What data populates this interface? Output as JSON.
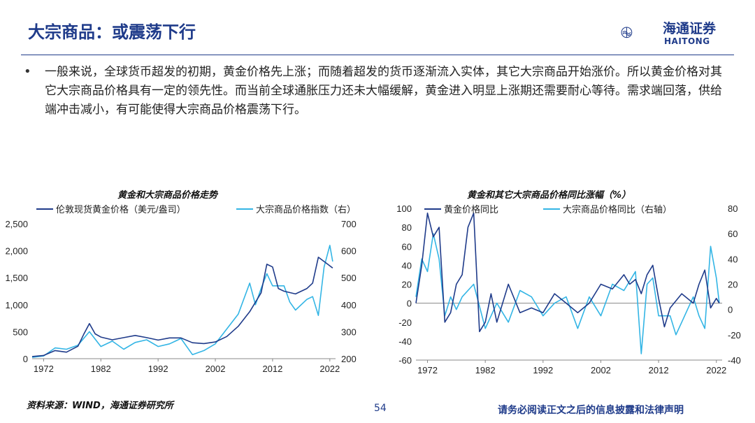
{
  "slide": {
    "title": "大宗商品：或震荡下行",
    "logo_name": "海通证券",
    "logo_sub": "HAITONG",
    "bullet": "•",
    "body": "一般来说，全球货币超发的初期，黄金价格先上涨；而随着超发的货币逐渐流入实体，其它大宗商品开始涨价。所以黄金价格对其它大宗商品价格具有一定的领先性。而当前全球通胀压力还未大幅缓解，黄金进入明显上涨期还需要耐心等待。需求端回落，供给端冲击减小，有可能使得大宗商品价格震荡下行。",
    "source": "资料来源：WIND，海通证券研究所",
    "page_number": "54",
    "disclaimer": "请务必阅读正文之后的信息披露和法律声明"
  },
  "colors": {
    "dark": "#1f3b8a",
    "light": "#33b5e5"
  },
  "chart_data": [
    {
      "type": "line",
      "title": "黄金和大宗商品价格走势",
      "x_ticks": [
        "1972",
        "1982",
        "1992",
        "2002",
        "2012",
        "2022"
      ],
      "xlim": [
        1970,
        2023
      ],
      "y_left": {
        "lim": [
          0,
          2500
        ],
        "ticks": [
          "0",
          "500",
          "1,000",
          "1,500",
          "2,000",
          "2,500"
        ]
      },
      "y_right": {
        "lim": [
          200,
          700
        ],
        "ticks": [
          "200",
          "300",
          "400",
          "500",
          "600",
          "700"
        ]
      },
      "series": [
        {
          "name": "伦敦现货黄金价格（美元/盎司）",
          "axis": "left",
          "color": "#1f3b8a",
          "x": [
            1970,
            1972,
            1974,
            1976,
            1978,
            1979,
            1980,
            1981,
            1982,
            1984,
            1986,
            1988,
            1990,
            1992,
            1994,
            1996,
            1998,
            2000,
            2002,
            2004,
            2006,
            2008,
            2010,
            2011,
            2012,
            2013,
            2014,
            2016,
            2018,
            2019,
            2020,
            2021,
            2022.5
          ],
          "y": [
            40,
            60,
            150,
            120,
            230,
            450,
            650,
            460,
            400,
            350,
            390,
            430,
            390,
            345,
            385,
            385,
            295,
            280,
            310,
            410,
            600,
            870,
            1220,
            1750,
            1700,
            1300,
            1250,
            1200,
            1300,
            1400,
            1880,
            1800,
            1680
          ]
        },
        {
          "name": "大宗商品价格指数（右）",
          "axis": "right",
          "color": "#33b5e5",
          "x": [
            1970,
            1972,
            1974,
            1976,
            1978,
            1980,
            1982,
            1984,
            1986,
            1988,
            1990,
            1992,
            1994,
            1996,
            1998,
            2000,
            2002,
            2004,
            2006,
            2008,
            2009,
            2010,
            2011,
            2012,
            2014,
            2015,
            2016,
            2018,
            2019,
            2020,
            2021,
            2022,
            2022.5
          ],
          "y": [
            205,
            210,
            240,
            235,
            250,
            300,
            245,
            265,
            235,
            260,
            270,
            245,
            255,
            275,
            215,
            230,
            255,
            310,
            365,
            480,
            400,
            460,
            515,
            470,
            470,
            410,
            380,
            420,
            430,
            360,
            540,
            620,
            560
          ]
        }
      ]
    },
    {
      "type": "line",
      "title": "黄金和其它大宗商品价格同比涨幅（%）",
      "x_ticks": [
        "1972",
        "1982",
        "1992",
        "2002",
        "2012",
        "2022"
      ],
      "xlim": [
        1970,
        2023
      ],
      "y_left": {
        "lim": [
          -60,
          100
        ],
        "ticks": [
          "-60",
          "-40",
          "-20",
          "0",
          "20",
          "40",
          "60",
          "80",
          "100"
        ]
      },
      "y_right": {
        "lim": [
          -40,
          80
        ],
        "ticks": [
          "-40",
          "-20",
          "0",
          "20",
          "40",
          "60",
          "80"
        ]
      },
      "series": [
        {
          "name": "黄金价格同比",
          "axis": "left",
          "color": "#1f3b8a",
          "x": [
            1970,
            1971,
            1972,
            1973,
            1974,
            1975,
            1976,
            1977,
            1978,
            1979,
            1980,
            1981,
            1982,
            1983,
            1984,
            1986,
            1988,
            1990,
            1992,
            1994,
            1996,
            1998,
            2000,
            2002,
            2004,
            2006,
            2007,
            2008,
            2009,
            2010,
            2011,
            2012,
            2013,
            2014,
            2016,
            2018,
            2019,
            2020,
            2021,
            2022,
            2022.5
          ],
          "y": [
            0,
            40,
            95,
            70,
            80,
            -20,
            -10,
            20,
            30,
            80,
            95,
            -30,
            -20,
            10,
            -20,
            20,
            -10,
            -5,
            -10,
            10,
            0,
            -10,
            0,
            20,
            15,
            30,
            20,
            25,
            10,
            30,
            40,
            5,
            -25,
            -5,
            10,
            0,
            20,
            35,
            -5,
            5,
            0
          ]
        },
        {
          "name": "大宗商品价格同比（右轴）",
          "axis": "right",
          "color": "#33b5e5",
          "x": [
            1970,
            1971,
            1972,
            1973,
            1974,
            1975,
            1976,
            1977,
            1978,
            1980,
            1982,
            1984,
            1986,
            1988,
            1990,
            1992,
            1994,
            1996,
            1998,
            2000,
            2002,
            2004,
            2006,
            2008,
            2009,
            2010,
            2011,
            2012,
            2014,
            2015,
            2016,
            2018,
            2019,
            2020,
            2021,
            2022,
            2022.5
          ],
          "y": [
            10,
            40,
            30,
            60,
            40,
            -5,
            10,
            0,
            10,
            20,
            -15,
            5,
            -10,
            15,
            10,
            -5,
            5,
            10,
            -15,
            10,
            -5,
            20,
            15,
            30,
            -35,
            20,
            25,
            -5,
            -5,
            -20,
            -10,
            10,
            -5,
            -15,
            50,
            25,
            5
          ]
        }
      ]
    }
  ]
}
